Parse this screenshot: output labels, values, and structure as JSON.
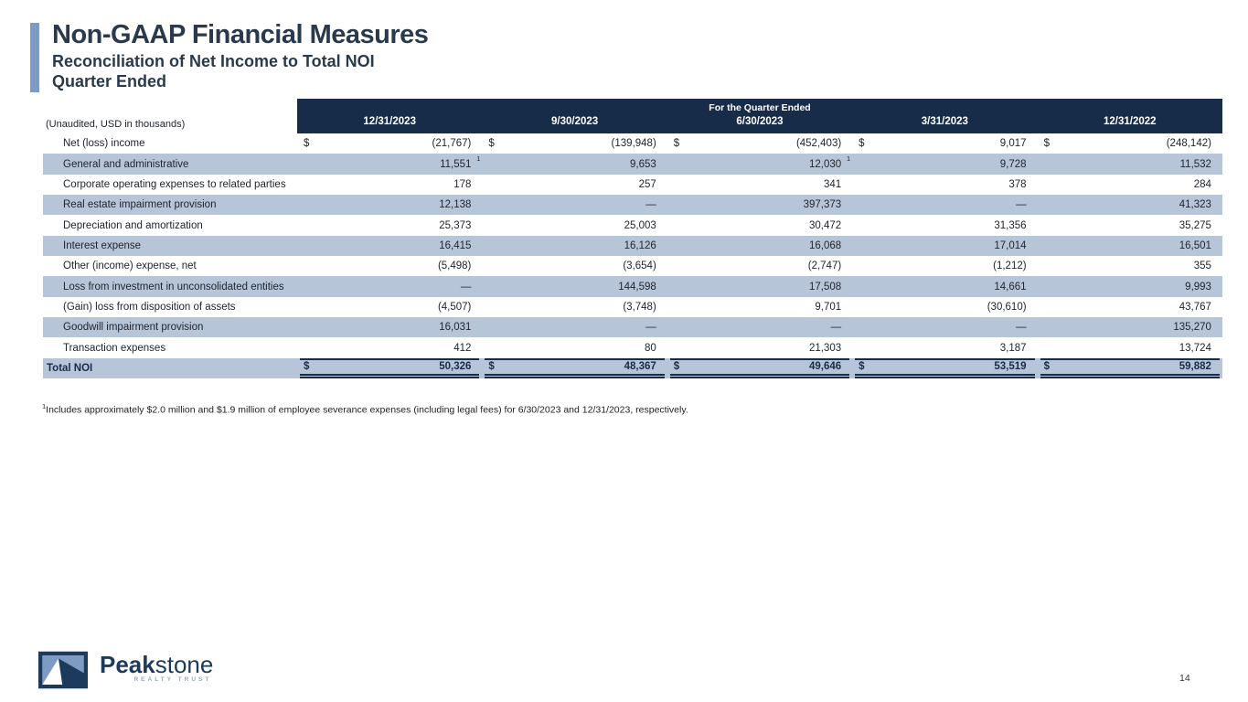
{
  "slide": {
    "title": "Non-GAAP Financial Measures",
    "subtitle_line1": "Reconciliation of Net Income to Total NOI",
    "subtitle_line2": "Quarter Ended",
    "page_number": "14"
  },
  "table": {
    "unaudited_note": "(Unaudited, USD in thousands)",
    "header_group": "For the Quarter Ended",
    "columns": [
      "12/31/2023",
      "9/30/2023",
      "6/30/2023",
      "3/31/2023",
      "12/31/2022"
    ],
    "currency_symbol": "$",
    "rows": [
      {
        "label": "Net (loss) income",
        "dollar": true,
        "values": [
          "(21,767)",
          "(139,948)",
          "(452,403)",
          "9,017",
          "(248,142)"
        ]
      },
      {
        "label": "General and administrative",
        "values": [
          "11,551",
          "9,653",
          "12,030",
          "9,728",
          "11,532"
        ],
        "footnote_cols": [
          0,
          2
        ]
      },
      {
        "label": "Corporate operating expenses to related parties",
        "values": [
          "178",
          "257",
          "341",
          "378",
          "284"
        ]
      },
      {
        "label": "Real estate impairment provision",
        "values": [
          "12,138",
          "—",
          "397,373",
          "—",
          "41,323"
        ]
      },
      {
        "label": "Depreciation and amortization",
        "values": [
          "25,373",
          "25,003",
          "30,472",
          "31,356",
          "35,275"
        ]
      },
      {
        "label": "Interest expense",
        "values": [
          "16,415",
          "16,126",
          "16,068",
          "17,014",
          "16,501"
        ]
      },
      {
        "label": "Other (income) expense, net",
        "values": [
          "(5,498)",
          "(3,654)",
          "(2,747)",
          "(1,212)",
          "355"
        ]
      },
      {
        "label": "Loss from investment in unconsolidated entities",
        "values": [
          "—",
          "144,598",
          "17,508",
          "14,661",
          "9,993"
        ]
      },
      {
        "label": "(Gain) loss from disposition of assets",
        "values": [
          "(4,507)",
          "(3,748)",
          "9,701",
          "(30,610)",
          "43,767"
        ]
      },
      {
        "label": "Goodwill impairment provision",
        "values": [
          "16,031",
          "—",
          "—",
          "—",
          "135,270"
        ]
      },
      {
        "label": "Transaction expenses",
        "values": [
          "412",
          "80",
          "21,303",
          "3,187",
          "13,724"
        ]
      },
      {
        "label": "Total NOI",
        "dollar": true,
        "total": true,
        "values": [
          "50,326",
          "48,367",
          "49,646",
          "53,519",
          "59,882"
        ]
      }
    ]
  },
  "footnote": {
    "marker": "1",
    "text": "Includes approximately $2.0 million and $1.9 million of employee severance expenses (including legal fees) for 6/30/2023 and 12/31/2023, respectively."
  },
  "logo": {
    "name_bold": "Peak",
    "name_light": "stone",
    "tagline": "REALTY TRUST"
  },
  "colors": {
    "header_navy": "#172c49",
    "row_stripe_blue": "#b7c5d9",
    "accent_bar_blue": "#7e9cc3",
    "title_navy": "#2a3a4c",
    "logo_navy": "#1b3a5c"
  }
}
